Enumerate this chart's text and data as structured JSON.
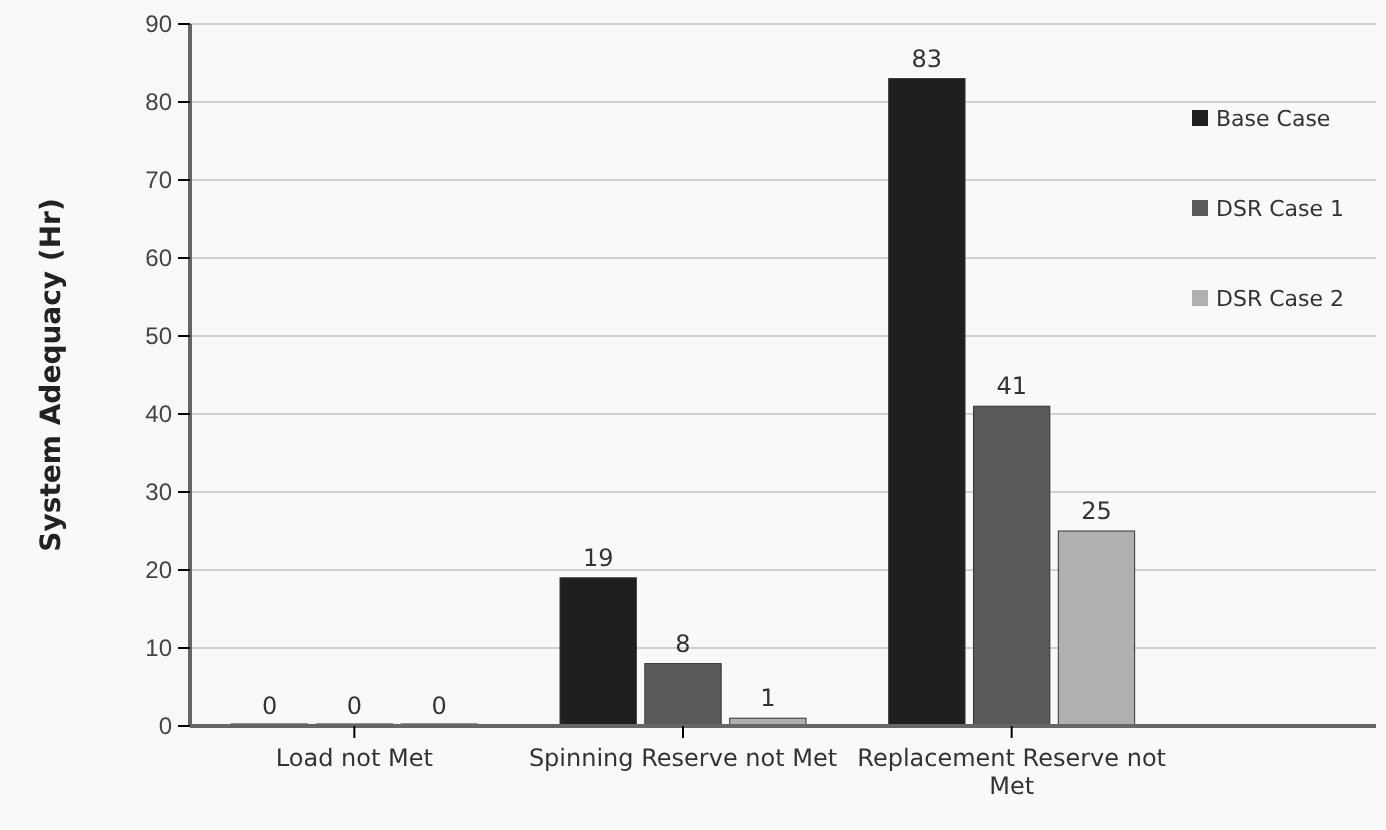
{
  "chart_data": {
    "type": "bar",
    "ylabel": "System Adequacy (Hr)",
    "categories": [
      "Load not Met",
      "Spinning Reserve not Met",
      "Replacement Reserve not Met"
    ],
    "series": [
      {
        "name": "Base Case",
        "color": "#1f1f1f",
        "values": [
          0,
          19,
          83
        ]
      },
      {
        "name": "DSR Case 1",
        "color": "#5a5a5a",
        "values": [
          0,
          8,
          41
        ]
      },
      {
        "name": "DSR Case 2",
        "color": "#b0b0b0",
        "values": [
          0,
          1,
          25
        ]
      }
    ],
    "ylim": [
      0,
      90
    ],
    "yticks": [
      0,
      10,
      20,
      30,
      40,
      50,
      60,
      70,
      80,
      90
    ],
    "grid": "y",
    "legend": "right",
    "data_labels": true
  }
}
